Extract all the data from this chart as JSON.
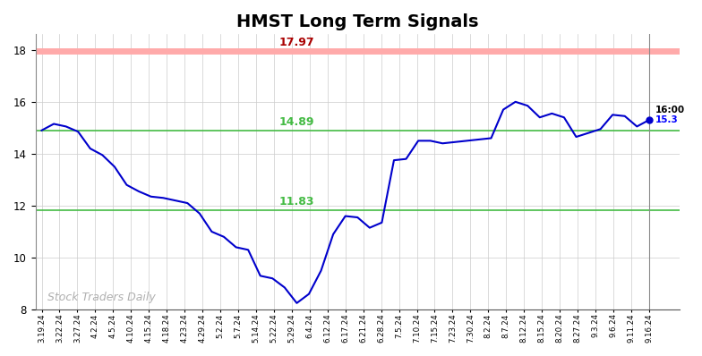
{
  "title": "HMST Long Term Signals",
  "title_fontsize": 14,
  "title_fontweight": "bold",
  "background_color": "#ffffff",
  "grid_color": "#cccccc",
  "line_color": "#0000cc",
  "line_width": 1.5,
  "hline_red": 17.97,
  "hline_green_upper": 14.89,
  "hline_green_lower": 11.83,
  "hline_red_color": "#ffaaaa",
  "hline_green_color": "#44bb44",
  "label_red_color": "#aa0000",
  "label_green_color": "#007700",
  "label_red_text": "17.97",
  "label_green_upper_text": "14.89",
  "label_green_lower_text": "11.83",
  "watermark": "Stock Traders Daily",
  "watermark_color": "#b0b0b0",
  "end_label_time": "16:00",
  "end_label_price": "15.3",
  "end_label_price_color": "#0000ff",
  "ylim": [
    8,
    18.6
  ],
  "yticks": [
    8,
    10,
    12,
    14,
    16,
    18
  ],
  "x_labels": [
    "3.19.24",
    "3.22.24",
    "3.27.24",
    "4.2.24",
    "4.5.24",
    "4.10.24",
    "4.15.24",
    "4.18.24",
    "4.23.24",
    "4.29.24",
    "5.2.24",
    "5.7.24",
    "5.14.24",
    "5.22.24",
    "5.29.24",
    "6.4.24",
    "6.12.24",
    "6.17.24",
    "6.21.24",
    "6.28.24",
    "7.5.24",
    "7.10.24",
    "7.15.24",
    "7.23.24",
    "7.30.24",
    "8.2.24",
    "8.7.24",
    "8.12.24",
    "8.15.24",
    "8.20.24",
    "8.27.24",
    "9.3.24",
    "9.6.24",
    "9.11.24",
    "9.16.24"
  ],
  "y_values": [
    14.9,
    15.15,
    15.05,
    14.85,
    14.2,
    13.95,
    13.5,
    12.8,
    12.55,
    12.35,
    12.3,
    12.2,
    12.1,
    11.7,
    11.0,
    10.8,
    10.4,
    10.3,
    9.3,
    9.2,
    8.85,
    8.25,
    8.6,
    9.5,
    10.9,
    11.6,
    11.55,
    11.15,
    11.35,
    13.75,
    13.8,
    14.5,
    14.5,
    14.4,
    14.45,
    14.5,
    14.55,
    14.6,
    15.7,
    16.0,
    15.85,
    15.4,
    15.55,
    15.4,
    14.65,
    14.8,
    14.95,
    15.5,
    15.45,
    15.05,
    15.3
  ]
}
